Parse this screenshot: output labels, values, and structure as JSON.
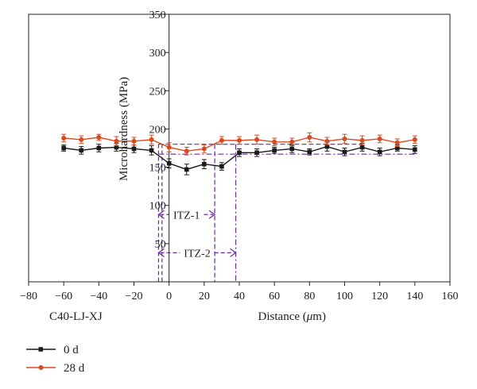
{
  "chart_data": {
    "type": "line",
    "title": "",
    "xlabel_prefix": "Distance (",
    "xlabel_unit": "μ",
    "xlabel_suffix": "m)",
    "ylabel": "Microhardness (MPa)",
    "xlim": [
      -80,
      160
    ],
    "ylim": [
      0,
      350
    ],
    "xticks": [
      -80,
      -60,
      -40,
      -20,
      0,
      20,
      40,
      60,
      80,
      100,
      120,
      140,
      160
    ],
    "yticks": [
      50,
      100,
      150,
      200,
      250,
      300,
      350
    ],
    "x": [
      -60,
      -50,
      -40,
      -30,
      -20,
      -10,
      0,
      10,
      20,
      30,
      40,
      50,
      60,
      70,
      80,
      90,
      100,
      110,
      120,
      130,
      140
    ],
    "series": [
      {
        "name": "0 d",
        "color": "#1a1a1a",
        "marker": "square",
        "values": [
          175,
          172,
          175,
          176,
          174,
          172,
          155,
          147,
          154,
          151,
          169,
          169,
          172,
          174,
          170,
          177,
          170,
          176,
          170,
          175,
          173
        ],
        "errors": [
          4,
          5,
          5,
          5,
          5,
          6,
          6,
          7,
          6,
          5,
          5,
          5,
          4,
          5,
          4,
          6,
          5,
          5,
          5,
          4,
          5
        ]
      },
      {
        "name": "28 d",
        "color": "#d94a1e",
        "marker": "circle",
        "values": [
          188,
          186,
          189,
          184,
          184,
          186,
          176,
          171,
          174,
          185,
          185,
          186,
          183,
          183,
          189,
          184,
          187,
          185,
          187,
          182,
          186
        ],
        "errors": [
          5,
          5,
          4,
          6,
          5,
          6,
          6,
          5,
          5,
          5,
          5,
          6,
          5,
          5,
          6,
          5,
          6,
          6,
          5,
          5,
          5
        ]
      }
    ],
    "annotations": {
      "sample_label": "C40-LJ-XJ",
      "itz1_label": "ITZ-1",
      "itz2_label": "ITZ-2",
      "itz_color": "#6a2c9c",
      "itz1_range": [
        -6,
        26
      ],
      "itz2_range": [
        -6,
        38
      ],
      "itz1_y": 88,
      "itz2_y": 38,
      "itz1_box_y": [
        167,
        180
      ],
      "itz2_box_y": [
        167,
        180
      ]
    },
    "legend_position": "bottom-left",
    "grid": false
  }
}
